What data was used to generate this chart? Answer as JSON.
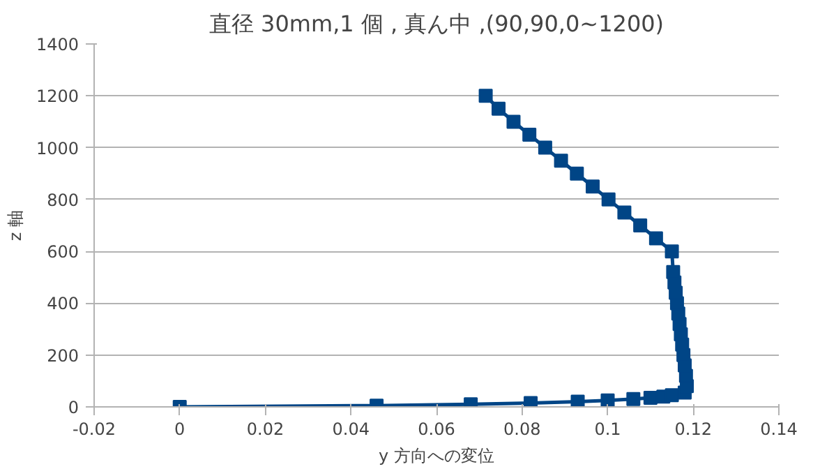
{
  "chart_data": {
    "type": "line",
    "title": "直径 30mm,1 個 , 真ん中 ,(90,90,0~1200)",
    "xlabel": "y 方向への変位",
    "ylabel": "z 軸",
    "x": [
      0,
      0.046,
      0.068,
      0.082,
      0.093,
      0.1,
      0.106,
      0.11,
      0.113,
      0.115,
      0.118,
      0.1185,
      0.1183,
      0.118,
      0.1177,
      0.1174,
      0.1171,
      0.1168,
      0.1165,
      0.1162,
      0.1159,
      0.1156,
      0.1153,
      0.115,
      0.1113,
      0.1076,
      0.1039,
      0.1002,
      0.0965,
      0.0928,
      0.0891,
      0.0854,
      0.0817,
      0.078,
      0.0745,
      0.0715
    ],
    "series": [
      {
        "color": "#004586",
        "values": [
          0,
          5,
          10,
          15,
          20,
          25,
          30,
          35,
          40,
          45,
          55,
          80,
          120,
          160,
          200,
          240,
          280,
          320,
          360,
          400,
          440,
          480,
          520,
          600,
          650,
          700,
          750,
          800,
          850,
          900,
          950,
          1000,
          1050,
          1100,
          1150,
          1200
        ]
      }
    ],
    "xlim": [
      -0.02,
      0.14
    ],
    "xticks": [
      {
        "value": -0.02,
        "label": "-0.02"
      },
      0,
      0.02,
      0.04,
      0.06,
      0.08,
      0.1,
      0.12,
      0.14
    ],
    "ylim": [
      0,
      1400
    ],
    "yticks": [
      0,
      200,
      400,
      600,
      800,
      1000,
      1200,
      1400
    ],
    "grid": "y",
    "marker": "square",
    "line_style": "solid"
  }
}
